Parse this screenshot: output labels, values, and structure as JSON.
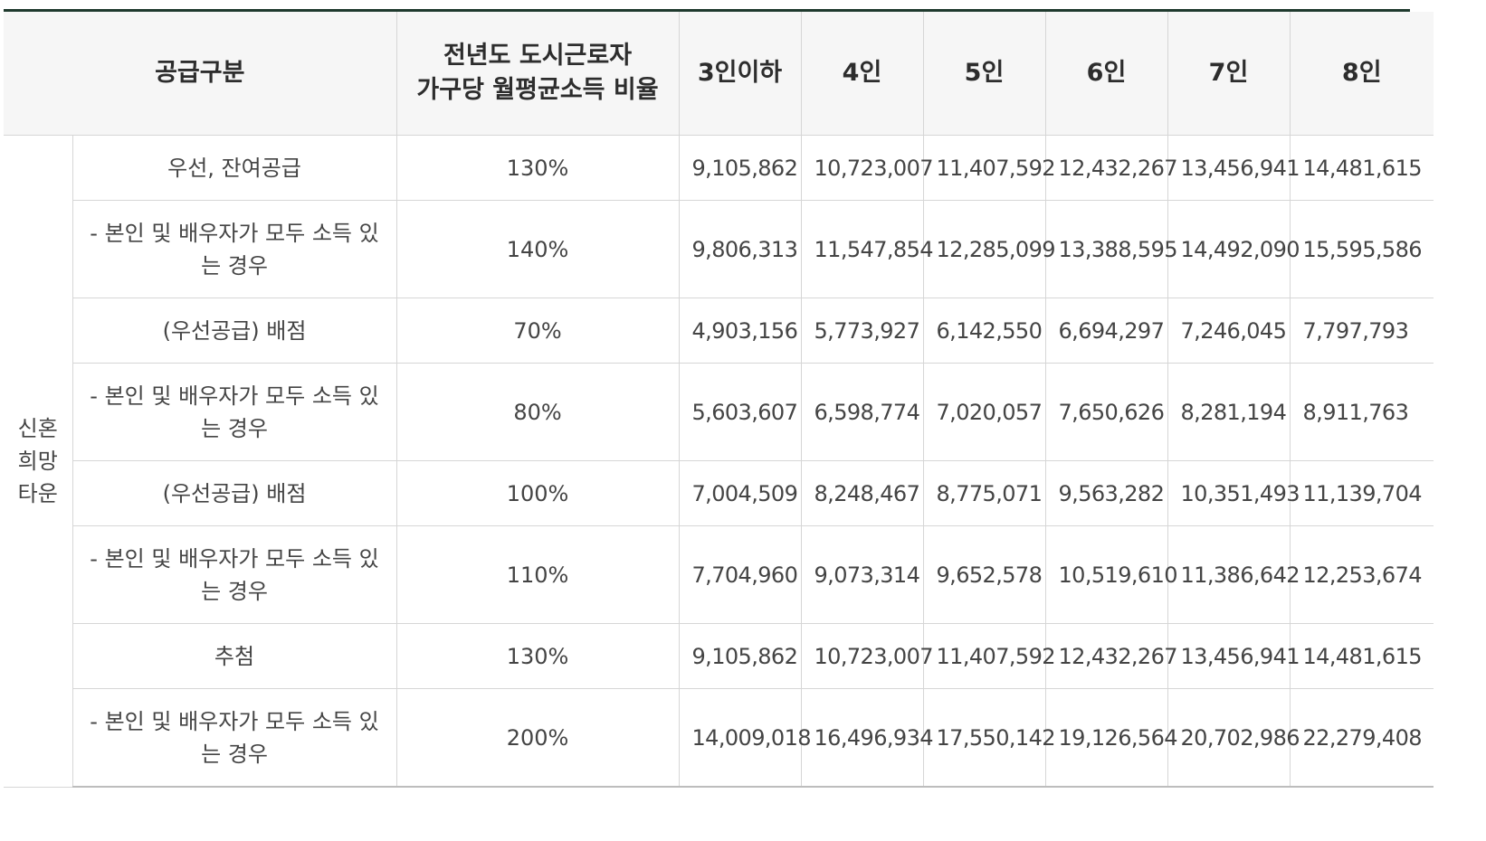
{
  "table": {
    "headers": [
      "공급구분",
      "전년도 도시근로자 가구당 월평균소득 비율",
      "3인이하",
      "4인",
      "5인",
      "6인",
      "7인",
      "8인"
    ],
    "header_ratio_lines": [
      "전년도 도시근로자",
      "가구당 월평균소득 비율"
    ],
    "group_label": "신혼희망타운",
    "group_label_lines": [
      "신혼",
      "희망",
      "타운"
    ],
    "rows": [
      {
        "label": "우선, 잔여공급",
        "ratio": "130%",
        "values": [
          "9,105,862",
          "10,723,007",
          "11,407,592",
          "12,432,267",
          "13,456,941",
          "14,481,615"
        ]
      },
      {
        "label": "- 본인 및 배우자가 모두 소득 있는 경우",
        "ratio": "140%",
        "values": [
          "9,806,313",
          "11,547,854",
          "12,285,099",
          "13,388,595",
          "14,492,090",
          "15,595,586"
        ]
      },
      {
        "label": "(우선공급) 배점",
        "ratio": "70%",
        "values": [
          "4,903,156",
          "5,773,927",
          "6,142,550",
          "6,694,297",
          "7,246,045",
          "7,797,793"
        ]
      },
      {
        "label": "- 본인 및 배우자가 모두 소득 있는 경우",
        "ratio": "80%",
        "values": [
          "5,603,607",
          "6,598,774",
          "7,020,057",
          "7,650,626",
          "8,281,194",
          "8,911,763"
        ]
      },
      {
        "label": "(우선공급) 배점",
        "ratio": "100%",
        "values": [
          "7,004,509",
          "8,248,467",
          "8,775,071",
          "9,563,282",
          "10,351,493",
          "11,139,704"
        ]
      },
      {
        "label": "- 본인 및 배우자가 모두 소득 있는 경우",
        "ratio": "110%",
        "values": [
          "7,704,960",
          "9,073,314",
          "9,652,578",
          "10,519,610",
          "11,386,642",
          "12,253,674"
        ]
      },
      {
        "label": "추첨",
        "ratio": "130%",
        "values": [
          "9,105,862",
          "10,723,007",
          "11,407,592",
          "12,432,267",
          "13,456,941",
          "14,481,615"
        ]
      },
      {
        "label": "- 본인 및 배우자가 모두 소득 있는 경우",
        "ratio": "200%",
        "values": [
          "14,009,018",
          "16,496,934",
          "17,550,142",
          "19,126,564",
          "20,702,986",
          "22,279,408"
        ]
      }
    ]
  }
}
